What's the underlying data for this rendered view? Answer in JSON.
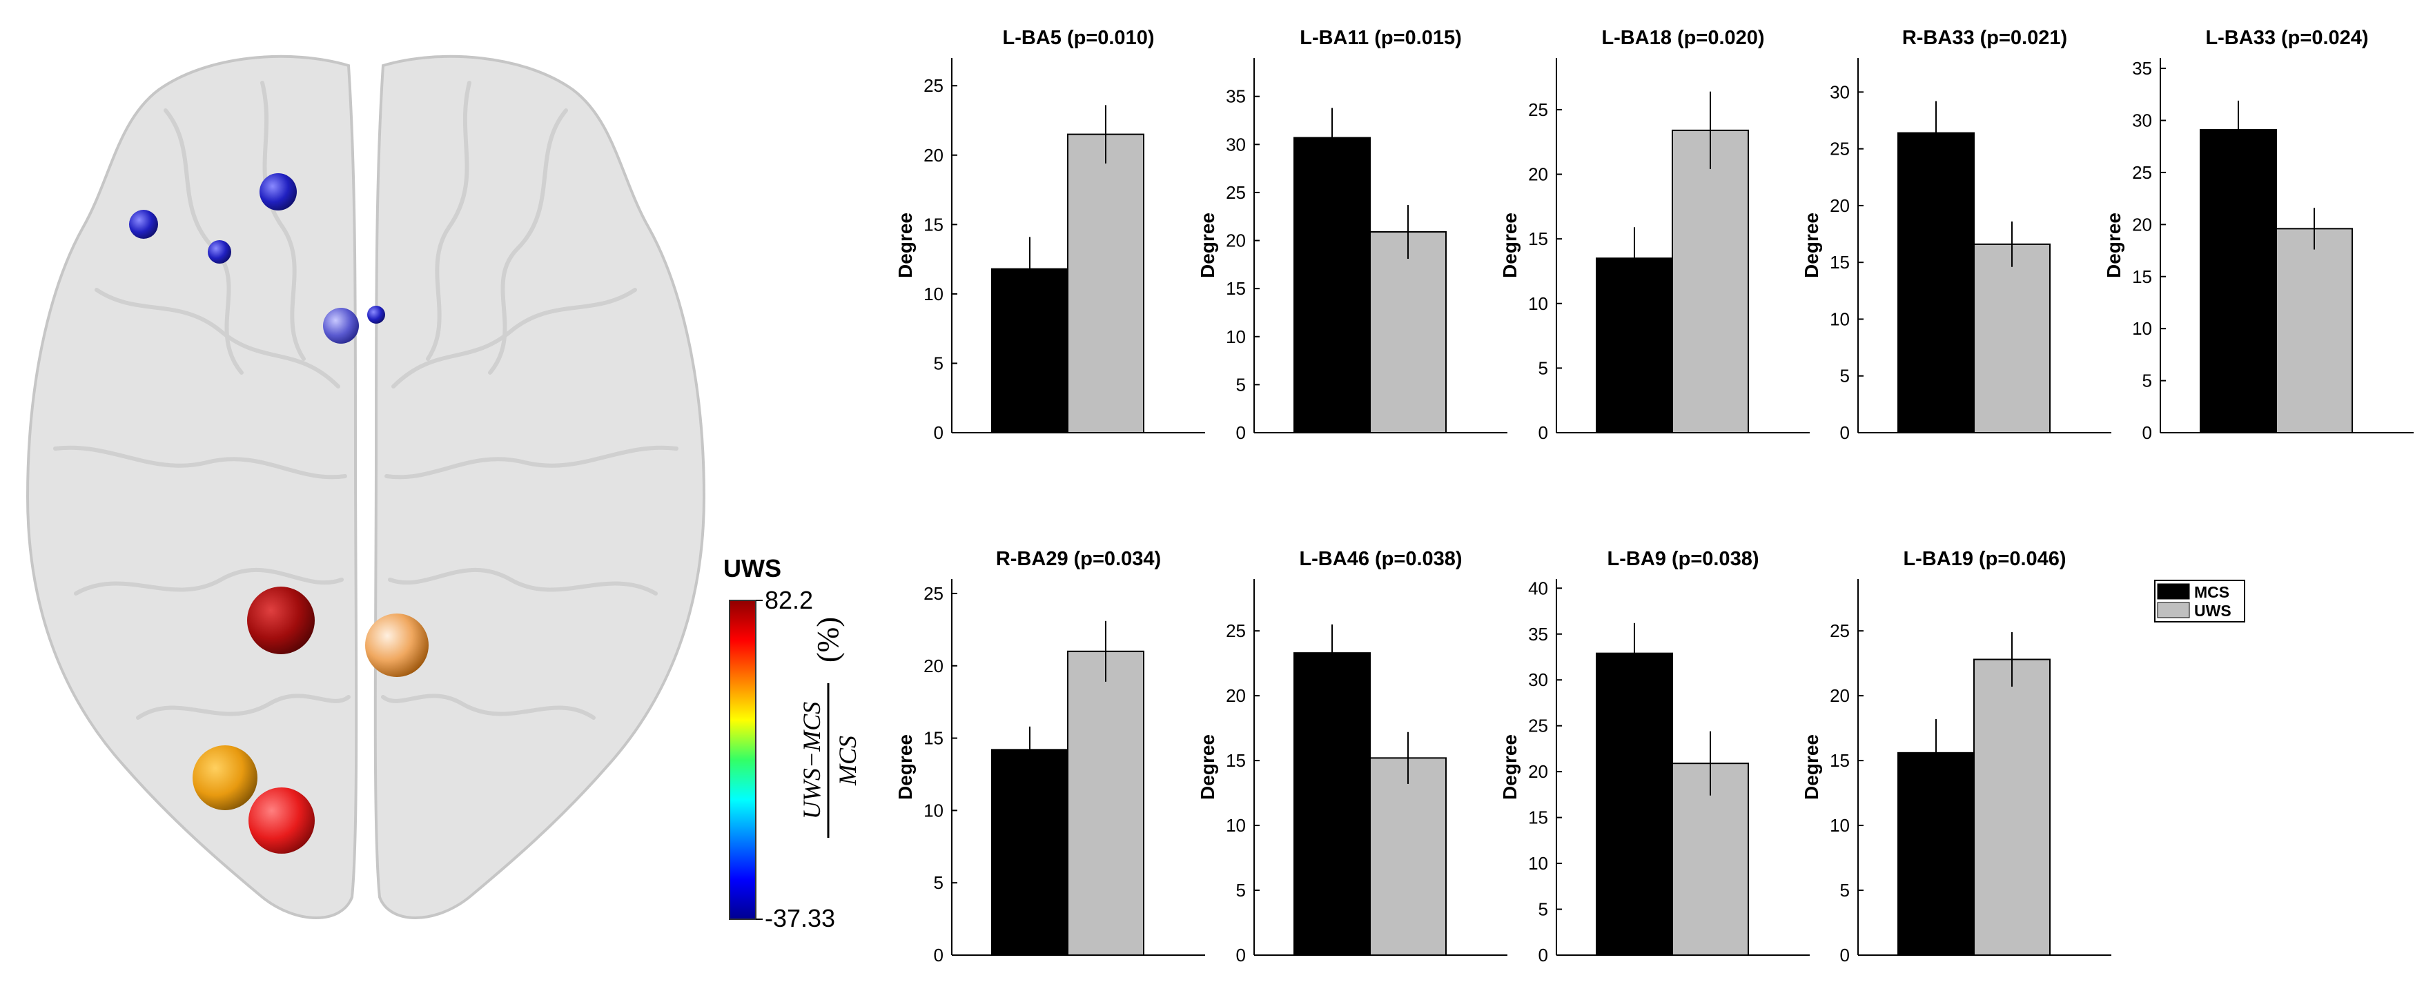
{
  "chart_data": [
    {
      "type": "bar",
      "title": "L-BA5 (p=0.010)",
      "ylabel": "Degree",
      "categories": [
        "MCS",
        "UWS"
      ],
      "values": [
        11.8,
        21.5
      ],
      "errors": [
        2.3,
        2.1
      ],
      "ylim": [
        0,
        27
      ],
      "yticks": [
        0,
        5,
        10,
        15,
        20,
        25
      ]
    },
    {
      "type": "bar",
      "title": "L-BA11 (p=0.015)",
      "ylabel": "Degree",
      "categories": [
        "MCS",
        "UWS"
      ],
      "values": [
        30.7,
        20.9
      ],
      "errors": [
        3.1,
        2.8
      ],
      "ylim": [
        0,
        39
      ],
      "yticks": [
        0,
        5,
        10,
        15,
        20,
        25,
        30,
        35
      ]
    },
    {
      "type": "bar",
      "title": "L-BA18 (p=0.020)",
      "ylabel": "Degree",
      "categories": [
        "MCS",
        "UWS"
      ],
      "values": [
        13.5,
        23.4
      ],
      "errors": [
        2.4,
        3.0
      ],
      "ylim": [
        0,
        29
      ],
      "yticks": [
        0,
        5,
        10,
        15,
        20,
        25
      ]
    },
    {
      "type": "bar",
      "title": "R-BA33 (p=0.021)",
      "ylabel": "Degree",
      "categories": [
        "MCS",
        "UWS"
      ],
      "values": [
        26.4,
        16.6
      ],
      "errors": [
        2.8,
        2.0
      ],
      "ylim": [
        0,
        33
      ],
      "yticks": [
        0,
        5,
        10,
        15,
        20,
        25,
        30
      ]
    },
    {
      "type": "bar",
      "title": "L-BA33 (p=0.024)",
      "ylabel": "Degree",
      "categories": [
        "MCS",
        "UWS"
      ],
      "values": [
        29.1,
        19.6
      ],
      "errors": [
        2.8,
        2.0
      ],
      "ylim": [
        0,
        36
      ],
      "yticks": [
        0,
        5,
        10,
        15,
        20,
        25,
        30,
        35
      ]
    },
    {
      "type": "bar",
      "title": "R-BA29 (p=0.034)",
      "ylabel": "Degree",
      "categories": [
        "MCS",
        "UWS"
      ],
      "values": [
        14.2,
        21.0
      ],
      "errors": [
        1.6,
        2.1
      ],
      "ylim": [
        0,
        26
      ],
      "yticks": [
        0,
        5,
        10,
        15,
        20,
        25
      ]
    },
    {
      "type": "bar",
      "title": "L-BA46 (p=0.038)",
      "ylabel": "Degree",
      "categories": [
        "MCS",
        "UWS"
      ],
      "values": [
        23.3,
        15.2
      ],
      "errors": [
        2.2,
        2.0
      ],
      "ylim": [
        0,
        29
      ],
      "yticks": [
        0,
        5,
        10,
        15,
        20,
        25
      ]
    },
    {
      "type": "bar",
      "title": "L-BA9 (p=0.038)",
      "ylabel": "Degree",
      "categories": [
        "MCS",
        "UWS"
      ],
      "values": [
        32.9,
        20.9
      ],
      "errors": [
        3.3,
        3.5
      ],
      "ylim": [
        0,
        41
      ],
      "yticks": [
        0,
        5,
        10,
        15,
        20,
        25,
        30,
        35,
        40
      ]
    },
    {
      "type": "bar",
      "title": "L-BA19 (p=0.046)",
      "ylabel": "Degree",
      "categories": [
        "MCS",
        "UWS"
      ],
      "values": [
        15.6,
        22.8
      ],
      "errors": [
        2.6,
        2.1
      ],
      "ylim": [
        0,
        29
      ],
      "yticks": [
        0,
        5,
        10,
        15,
        20,
        25
      ]
    }
  ],
  "legend": {
    "items": [
      {
        "label": "MCS",
        "color": "#000000"
      },
      {
        "label": "UWS",
        "color": "#bfbfbf"
      }
    ]
  },
  "colors": {
    "mcs": "#000000",
    "uws": "#bfbfbf"
  },
  "colorbar": {
    "title": "UWS",
    "max_label": "82.2",
    "min_label": "-37.33",
    "formula_numerator": "UWS−MCS",
    "formula_denominator": "MCS",
    "unit": "(%)"
  }
}
